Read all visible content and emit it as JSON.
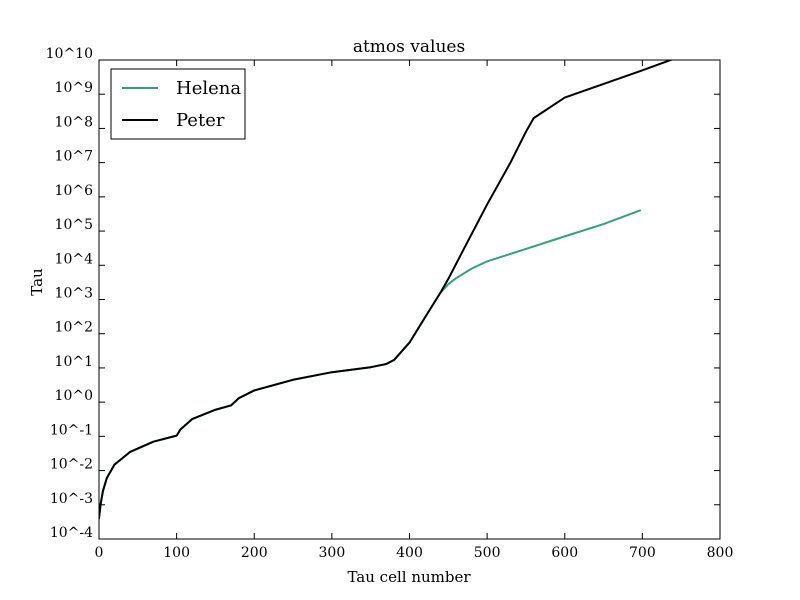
{
  "chart_data": {
    "type": "line",
    "title": "atmos values",
    "xlabel": "Tau cell number",
    "ylabel": "Tau",
    "xlim": [
      0,
      800
    ],
    "ylim": [
      0.0001,
      10000000000
    ],
    "yscale": "log",
    "grid": false,
    "legend_position": "top-left",
    "x_ticks": [
      0,
      100,
      200,
      300,
      400,
      500,
      600,
      700,
      800
    ],
    "x_tick_labels": [
      "0",
      "100",
      "200",
      "300",
      "400",
      "500",
      "600",
      "700",
      "800"
    ],
    "y_ticks": [
      0.0001,
      0.001,
      0.01,
      0.1,
      1,
      10,
      100,
      1000,
      10000,
      100000,
      1000000,
      10000000,
      100000000,
      1000000000,
      10000000000
    ],
    "y_tick_labels": [
      "10^-4",
      "10^-3",
      "10^-2",
      "10^-1",
      "10^0",
      "10^1",
      "10^2",
      "10^3",
      "10^4",
      "10^5",
      "10^6",
      "10^7",
      "10^8",
      "10^9",
      "10^10"
    ],
    "series": [
      {
        "name": "Helena",
        "color": "#2ca57a",
        "x": [
          0,
          2,
          5,
          10,
          20,
          40,
          70,
          100,
          105,
          120,
          150,
          170,
          180,
          200,
          250,
          300,
          350,
          370,
          380,
          400,
          420,
          440,
          450,
          460,
          480,
          500,
          550,
          600,
          650,
          697
        ],
        "y": [
          0.0004,
          0.001,
          0.0025,
          0.006,
          0.015,
          0.035,
          0.07,
          0.105,
          0.16,
          0.32,
          0.6,
          0.8,
          1.3,
          2.2,
          4.5,
          7.5,
          10.5,
          13,
          17,
          55,
          300,
          1600,
          2800,
          4200,
          8000,
          13000,
          30000,
          70000,
          160000,
          400000
        ]
      },
      {
        "name": "Peter",
        "color": "#000000",
        "x": [
          0,
          2,
          5,
          10,
          20,
          40,
          70,
          100,
          105,
          120,
          150,
          170,
          180,
          200,
          250,
          300,
          350,
          370,
          380,
          400,
          420,
          440,
          450,
          470,
          500,
          530,
          550,
          560,
          600,
          650,
          700,
          773
        ],
        "y": [
          0.0004,
          0.001,
          0.0025,
          0.006,
          0.015,
          0.035,
          0.07,
          0.105,
          0.16,
          0.32,
          0.6,
          0.8,
          1.3,
          2.2,
          4.5,
          7.5,
          10.5,
          13,
          17,
          55,
          300,
          1600,
          4000,
          30000,
          600000,
          10000000,
          80000000,
          200000000,
          800000000,
          2000000000,
          5000000000,
          20000000000
        ]
      }
    ]
  }
}
